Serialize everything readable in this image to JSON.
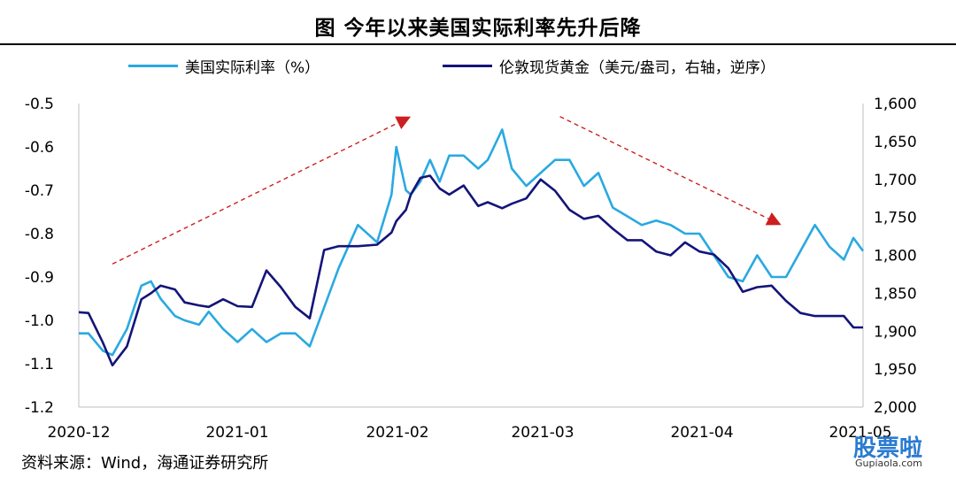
{
  "title": "图 今年以来美国实际利率先升后降",
  "source": "资料来源：Wind，海通证券研究所",
  "watermark": {
    "text": "股票啦",
    "sub": "Gupiaola.com"
  },
  "colors": {
    "real_rate": "#29a9e1",
    "gold": "#14147a",
    "arrow": "#cc1f1f"
  },
  "chart_data": {
    "type": "line",
    "x_tick_labels": [
      "2020-12",
      "2021-01",
      "2021-02",
      "2021-03",
      "2021-04",
      "2021-05"
    ],
    "y_left": {
      "ticks": [
        "-0.5",
        "-0.6",
        "-0.7",
        "-0.8",
        "-0.9",
        "-1.0",
        "-1.1",
        "-1.2"
      ],
      "range": [
        -1.2,
        -0.5
      ]
    },
    "y_right": {
      "ticks": [
        "1,600",
        "1,650",
        "1,700",
        "1,750",
        "1,800",
        "1,850",
        "1,900",
        "1,950",
        "2,000"
      ],
      "range": [
        1600,
        2000
      ],
      "reversed": true
    },
    "series": [
      {
        "name": "美国实际利率（%）",
        "axis": "left",
        "x": [
          "2020-12-01",
          "2020-12-03",
          "2020-12-06",
          "2020-12-08",
          "2020-12-11",
          "2020-12-14",
          "2020-12-16",
          "2020-12-18",
          "2020-12-21",
          "2020-12-23",
          "2020-12-26",
          "2020-12-28",
          "2020-12-31",
          "2021-01-03",
          "2021-01-06",
          "2021-01-09",
          "2021-01-12",
          "2021-01-15",
          "2021-01-18",
          "2021-01-21",
          "2021-01-24",
          "2021-01-28",
          "2021-02-01",
          "2021-02-04",
          "2021-02-05",
          "2021-02-07",
          "2021-02-08",
          "2021-02-10",
          "2021-02-12",
          "2021-02-14",
          "2021-02-16",
          "2021-02-19",
          "2021-02-22",
          "2021-02-24",
          "2021-02-27",
          "2021-03-01",
          "2021-03-04",
          "2021-03-07",
          "2021-03-10",
          "2021-03-13",
          "2021-03-16",
          "2021-03-19",
          "2021-03-22",
          "2021-03-25",
          "2021-03-28",
          "2021-03-31",
          "2021-04-03",
          "2021-04-06",
          "2021-04-09",
          "2021-04-12",
          "2021-04-15",
          "2021-04-18",
          "2021-04-21",
          "2021-04-24",
          "2021-04-27",
          "2021-04-30",
          "2021-05-03",
          "2021-05-06",
          "2021-05-09",
          "2021-05-11",
          "2021-05-13"
        ],
        "y": [
          -1.03,
          -1.03,
          -1.07,
          -1.08,
          -1.02,
          -0.92,
          -0.91,
          -0.95,
          -0.99,
          -1.0,
          -1.01,
          -0.98,
          -1.02,
          -1.05,
          -1.02,
          -1.05,
          -1.03,
          -1.03,
          -1.06,
          -0.97,
          -0.88,
          -0.78,
          -0.82,
          -0.71,
          -0.6,
          -0.7,
          -0.71,
          -0.68,
          -0.63,
          -0.68,
          -0.62,
          -0.62,
          -0.65,
          -0.63,
          -0.56,
          -0.65,
          -0.69,
          -0.66,
          -0.63,
          -0.63,
          -0.69,
          -0.66,
          -0.74,
          -0.76,
          -0.78,
          -0.77,
          -0.78,
          -0.8,
          -0.8,
          -0.85,
          -0.9,
          -0.91,
          -0.85,
          -0.9,
          -0.9,
          -0.84,
          -0.78,
          -0.83,
          -0.86,
          -0.81,
          -0.84
        ]
      },
      {
        "name": "伦敦现货黄金（美元/盎司，右轴，逆序）",
        "axis": "right",
        "x": [
          "2020-12-01",
          "2020-12-03",
          "2020-12-06",
          "2020-12-08",
          "2020-12-11",
          "2020-12-14",
          "2020-12-16",
          "2020-12-18",
          "2020-12-21",
          "2020-12-23",
          "2020-12-26",
          "2020-12-28",
          "2020-12-31",
          "2021-01-03",
          "2021-01-06",
          "2021-01-09",
          "2021-01-12",
          "2021-01-15",
          "2021-01-18",
          "2021-01-21",
          "2021-01-24",
          "2021-01-28",
          "2021-02-01",
          "2021-02-04",
          "2021-02-05",
          "2021-02-07",
          "2021-02-08",
          "2021-02-10",
          "2021-02-12",
          "2021-02-14",
          "2021-02-16",
          "2021-02-19",
          "2021-02-22",
          "2021-02-24",
          "2021-02-27",
          "2021-03-01",
          "2021-03-04",
          "2021-03-07",
          "2021-03-10",
          "2021-03-13",
          "2021-03-16",
          "2021-03-19",
          "2021-03-22",
          "2021-03-25",
          "2021-03-28",
          "2021-03-31",
          "2021-04-03",
          "2021-04-06",
          "2021-04-09",
          "2021-04-12",
          "2021-04-15",
          "2021-04-18",
          "2021-04-21",
          "2021-04-24",
          "2021-04-27",
          "2021-04-30",
          "2021-05-03",
          "2021-05-06",
          "2021-05-09",
          "2021-05-11",
          "2021-05-13"
        ],
        "y": [
          1875,
          1876,
          1915,
          1945,
          1920,
          1858,
          1850,
          1840,
          1845,
          1862,
          1866,
          1868,
          1858,
          1867,
          1868,
          1820,
          1842,
          1868,
          1883,
          1793,
          1788,
          1788,
          1786,
          1770,
          1755,
          1740,
          1720,
          1698,
          1695,
          1712,
          1720,
          1708,
          1735,
          1730,
          1738,
          1732,
          1725,
          1700,
          1715,
          1740,
          1752,
          1748,
          1765,
          1780,
          1780,
          1795,
          1800,
          1783,
          1795,
          1799,
          1817,
          1848,
          1842,
          1840,
          1860,
          1876,
          1880,
          1880,
          1880,
          1895,
          1895
        ]
      }
    ],
    "annotations": [
      {
        "type": "arrow",
        "style": "dashed",
        "from": [
          "2020-12-08",
          -0.87
        ],
        "to": [
          "2021-02-08",
          -0.53
        ]
      },
      {
        "type": "arrow",
        "style": "dashed",
        "from": [
          "2021-03-11",
          -0.53
        ],
        "to": [
          "2021-04-26",
          -0.78
        ]
      }
    ]
  }
}
